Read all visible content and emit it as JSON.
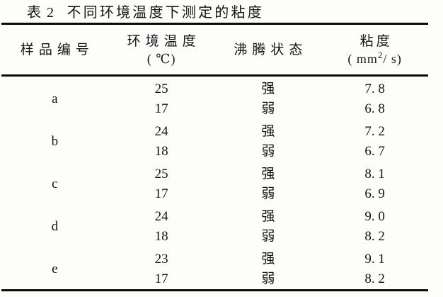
{
  "page": {
    "background": "#fdfdfc",
    "text_color": "#141414",
    "rule_color": "#0a0a0a"
  },
  "table": {
    "number": "表 2",
    "title": "不同环境温度下测定的粘度",
    "columns": [
      {
        "label": "样品编号"
      },
      {
        "label": "环境温度",
        "unit": "( ℃)"
      },
      {
        "label": "沸腾状态"
      },
      {
        "label": "粘度",
        "unit": {
          "pre": "( mm",
          "sup": "2",
          "post": "/ s)"
        }
      }
    ],
    "groups": [
      {
        "sample": "a",
        "rows": [
          {
            "temperature": "25",
            "boiling": "强",
            "viscosity": "7. 8"
          },
          {
            "temperature": "17",
            "boiling": "弱",
            "viscosity": "6. 8"
          }
        ]
      },
      {
        "sample": "b",
        "rows": [
          {
            "temperature": "24",
            "boiling": "强",
            "viscosity": "7. 2"
          },
          {
            "temperature": "18",
            "boiling": "弱",
            "viscosity": "6. 7"
          }
        ]
      },
      {
        "sample": "c",
        "rows": [
          {
            "temperature": "25",
            "boiling": "强",
            "viscosity": "8. 1"
          },
          {
            "temperature": "17",
            "boiling": "弱",
            "viscosity": "6. 9"
          }
        ]
      },
      {
        "sample": "d",
        "rows": [
          {
            "temperature": "24",
            "boiling": "强",
            "viscosity": "9. 0"
          },
          {
            "temperature": "18",
            "boiling": "弱",
            "viscosity": "8. 2"
          }
        ]
      },
      {
        "sample": "e",
        "rows": [
          {
            "temperature": "23",
            "boiling": "强",
            "viscosity": "9. 1"
          },
          {
            "temperature": "17",
            "boiling": "弱",
            "viscosity": "8. 2"
          }
        ]
      }
    ]
  },
  "chart_data": {
    "type": "table",
    "title": "表2 不同环境温度下测定的粘度",
    "columns": [
      "样品编号",
      "环境温度(℃)",
      "沸腾状态",
      "粘度(mm2/s)"
    ],
    "rows": [
      [
        "a",
        25,
        "强",
        7.8
      ],
      [
        "a",
        17,
        "弱",
        6.8
      ],
      [
        "b",
        24,
        "强",
        7.2
      ],
      [
        "b",
        18,
        "弱",
        6.7
      ],
      [
        "c",
        25,
        "强",
        8.1
      ],
      [
        "c",
        17,
        "弱",
        6.9
      ],
      [
        "d",
        24,
        "强",
        9.0
      ],
      [
        "d",
        18,
        "弱",
        8.2
      ],
      [
        "e",
        23,
        "强",
        9.1
      ],
      [
        "e",
        17,
        "弱",
        8.2
      ]
    ]
  }
}
